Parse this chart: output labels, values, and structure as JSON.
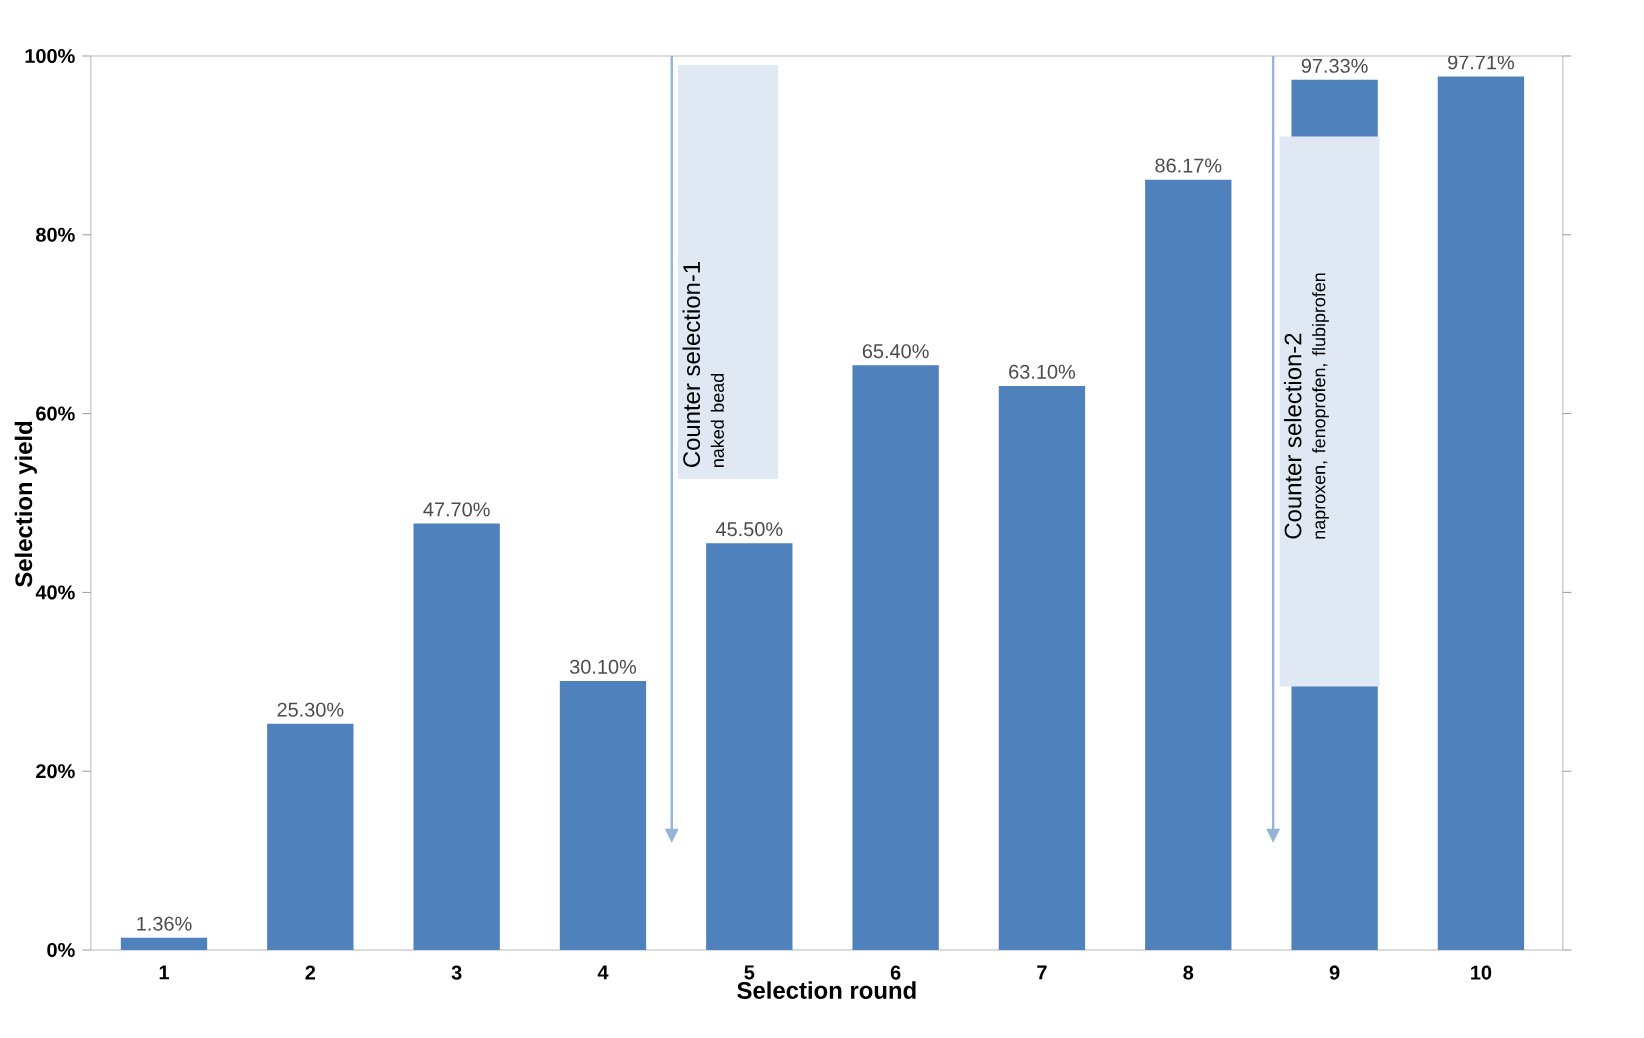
{
  "chart_data": {
    "type": "bar",
    "xlabel": "Selection round",
    "ylabel": "Selection yield",
    "categories": [
      "1",
      "2",
      "3",
      "4",
      "5",
      "6",
      "7",
      "8",
      "9",
      "10"
    ],
    "values": [
      1.36,
      25.3,
      47.7,
      30.1,
      45.5,
      65.4,
      63.1,
      86.17,
      97.33,
      97.71
    ],
    "value_labels": [
      "1.36%",
      "25.30%",
      "47.70%",
      "30.10%",
      "45.50%",
      "65.40%",
      "63.10%",
      "86.17%",
      "97.33%",
      "97.71%"
    ],
    "color": "#4f81bd",
    "ylim": [
      0,
      100
    ],
    "yticks": [
      {
        "value": 0,
        "label": "0%"
      },
      {
        "value": 20,
        "label": "20%"
      },
      {
        "value": 40,
        "label": "40%"
      },
      {
        "value": 60,
        "label": "60%"
      },
      {
        "value": 80,
        "label": "80%"
      },
      {
        "value": 100,
        "label": "100%"
      }
    ],
    "annotations": [
      "Counter selection-1",
      "naked bead",
      "Counter selection-2",
      "naproxen,  fenoprofen,  flubiprofen"
    ],
    "grid": false
  }
}
